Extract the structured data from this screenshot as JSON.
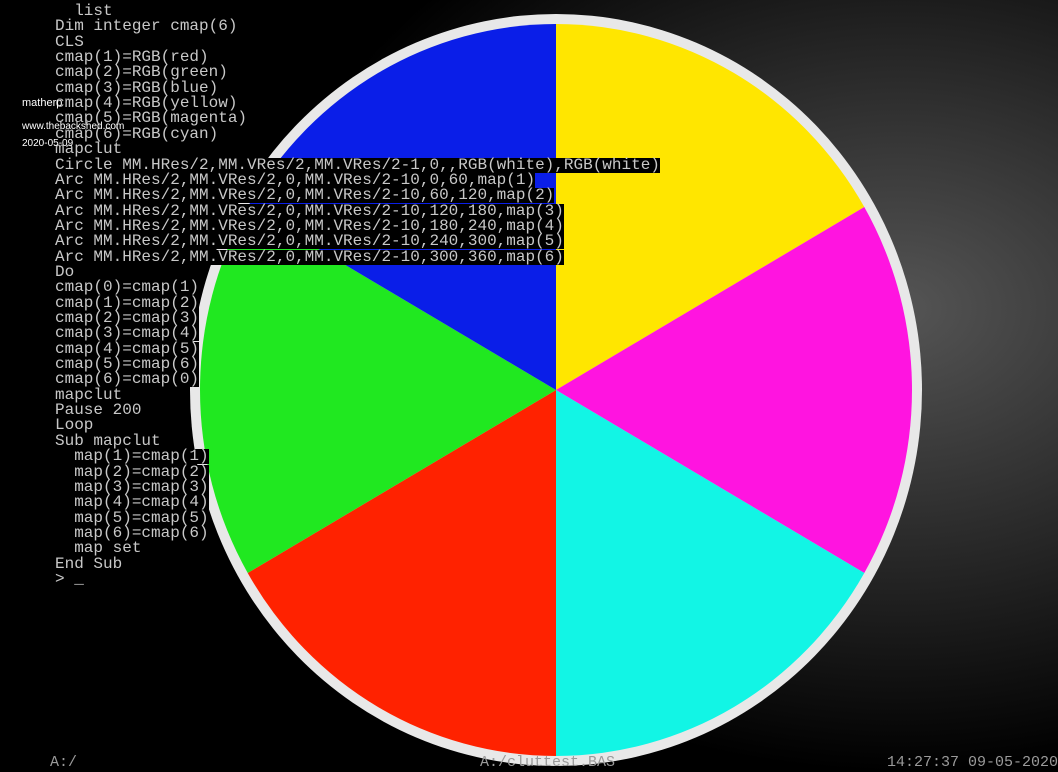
{
  "terminal": {
    "lines": [
      "  list",
      "Dim integer cmap(6)",
      "CLS",
      "cmap(1)=RGB(red)",
      "cmap(2)=RGB(green)",
      "cmap(3)=RGB(blue)",
      "cmap(4)=RGB(yellow)",
      "cmap(5)=RGB(magenta)",
      "cmap(6)=RGB(cyan)",
      "mapclut",
      "Circle MM.HRes/2,MM.VRes/2,MM.VRes/2-1,0,,RGB(white),RGB(white)",
      "Arc MM.HRes/2,MM.VRes/2,0,MM.VRes/2-10,0,60,map(1)",
      "Arc MM.HRes/2,MM.VRes/2,0,MM.VRes/2-10,60,120,map(2)",
      "Arc MM.HRes/2,MM.VRes/2,0,MM.VRes/2-10,120,180,map(3)",
      "Arc MM.HRes/2,MM.VRes/2,0,MM.VRes/2-10,180,240,map(4)",
      "Arc MM.HRes/2,MM.VRes/2,0,MM.VRes/2-10,240,300,map(5)",
      "Arc MM.HRes/2,MM.VRes/2,0,MM.VRes/2-10,300,360,map(6)",
      "Do",
      "cmap(0)=cmap(1)",
      "cmap(1)=cmap(2)",
      "cmap(2)=cmap(3)",
      "cmap(3)=cmap(4)",
      "cmap(4)=cmap(5)",
      "cmap(5)=cmap(6)",
      "cmap(6)=cmap(0)",
      "mapclut",
      "Pause 200",
      "Loop",
      "Sub mapclut",
      "  map(1)=cmap(1)",
      "  map(2)=cmap(2)",
      "  map(3)=cmap(3)",
      "  map(4)=cmap(4)",
      "  map(5)=cmap(5)",
      "  map(6)=cmap(6)",
      "  map set",
      "End Sub",
      "> _"
    ]
  },
  "watermark": {
    "author": "matherp",
    "site": "www.thebackshed.com",
    "date": "2020-05-09"
  },
  "status_bar": {
    "left": "A:/",
    "center": "A:/cluttest.BAS",
    "right": "14:27:37 09-05-2020"
  }
}
